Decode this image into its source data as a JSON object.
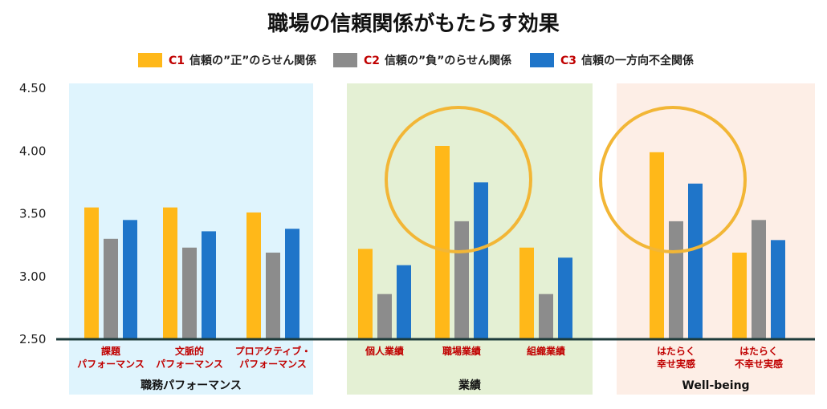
{
  "chart_data": {
    "type": "bar",
    "title": "職場の信頼関係がもたらす効果",
    "ylim": [
      2.5,
      4.5
    ],
    "yticks": [
      "4.50",
      "4.00",
      "3.50",
      "3.00",
      "2.50"
    ],
    "yticks_values": [
      4.5,
      4.0,
      3.5,
      3.0,
      2.5
    ],
    "legend_position": "top",
    "series": [
      {
        "code": "C1",
        "name": "信頼の”正”のらせん関係",
        "color": "#ffb819",
        "values": [
          3.55,
          3.55,
          3.51,
          3.22,
          4.04,
          3.23,
          3.99,
          3.19
        ]
      },
      {
        "code": "C2",
        "name": "信頼の”負”のらせん関係",
        "color": "#8c8c8c",
        "values": [
          3.3,
          3.23,
          3.19,
          2.86,
          3.44,
          2.86,
          3.44,
          3.45
        ]
      },
      {
        "code": "C3",
        "name": "信頼の一方向不全関係",
        "color": "#1f75c9",
        "values": [
          3.45,
          3.36,
          3.38,
          3.09,
          3.75,
          3.15,
          3.74,
          3.29
        ]
      }
    ],
    "categories": [
      [
        "課題",
        "パフォーマンス"
      ],
      [
        "文脈的",
        "パフォーマンス"
      ],
      [
        "プロアクティブ・",
        "パフォーマンス"
      ],
      [
        "個人業績"
      ],
      [
        "職場業績"
      ],
      [
        "組織業績"
      ],
      [
        "はたらく",
        "幸せ実感"
      ],
      [
        "はたらく",
        "不幸せ実感"
      ]
    ],
    "groups": [
      {
        "label": "職務パフォーマンス",
        "color": "#dff4fd",
        "categories": [
          0,
          1,
          2
        ]
      },
      {
        "label": "業績",
        "color": "#e4f0d4",
        "categories": [
          3,
          4,
          5
        ]
      },
      {
        "label": "Well-being",
        "color": "#fdeee6",
        "categories": [
          6,
          7
        ]
      }
    ],
    "highlight_circles": [
      4,
      6
    ],
    "highlight_color": "#f2b636"
  }
}
